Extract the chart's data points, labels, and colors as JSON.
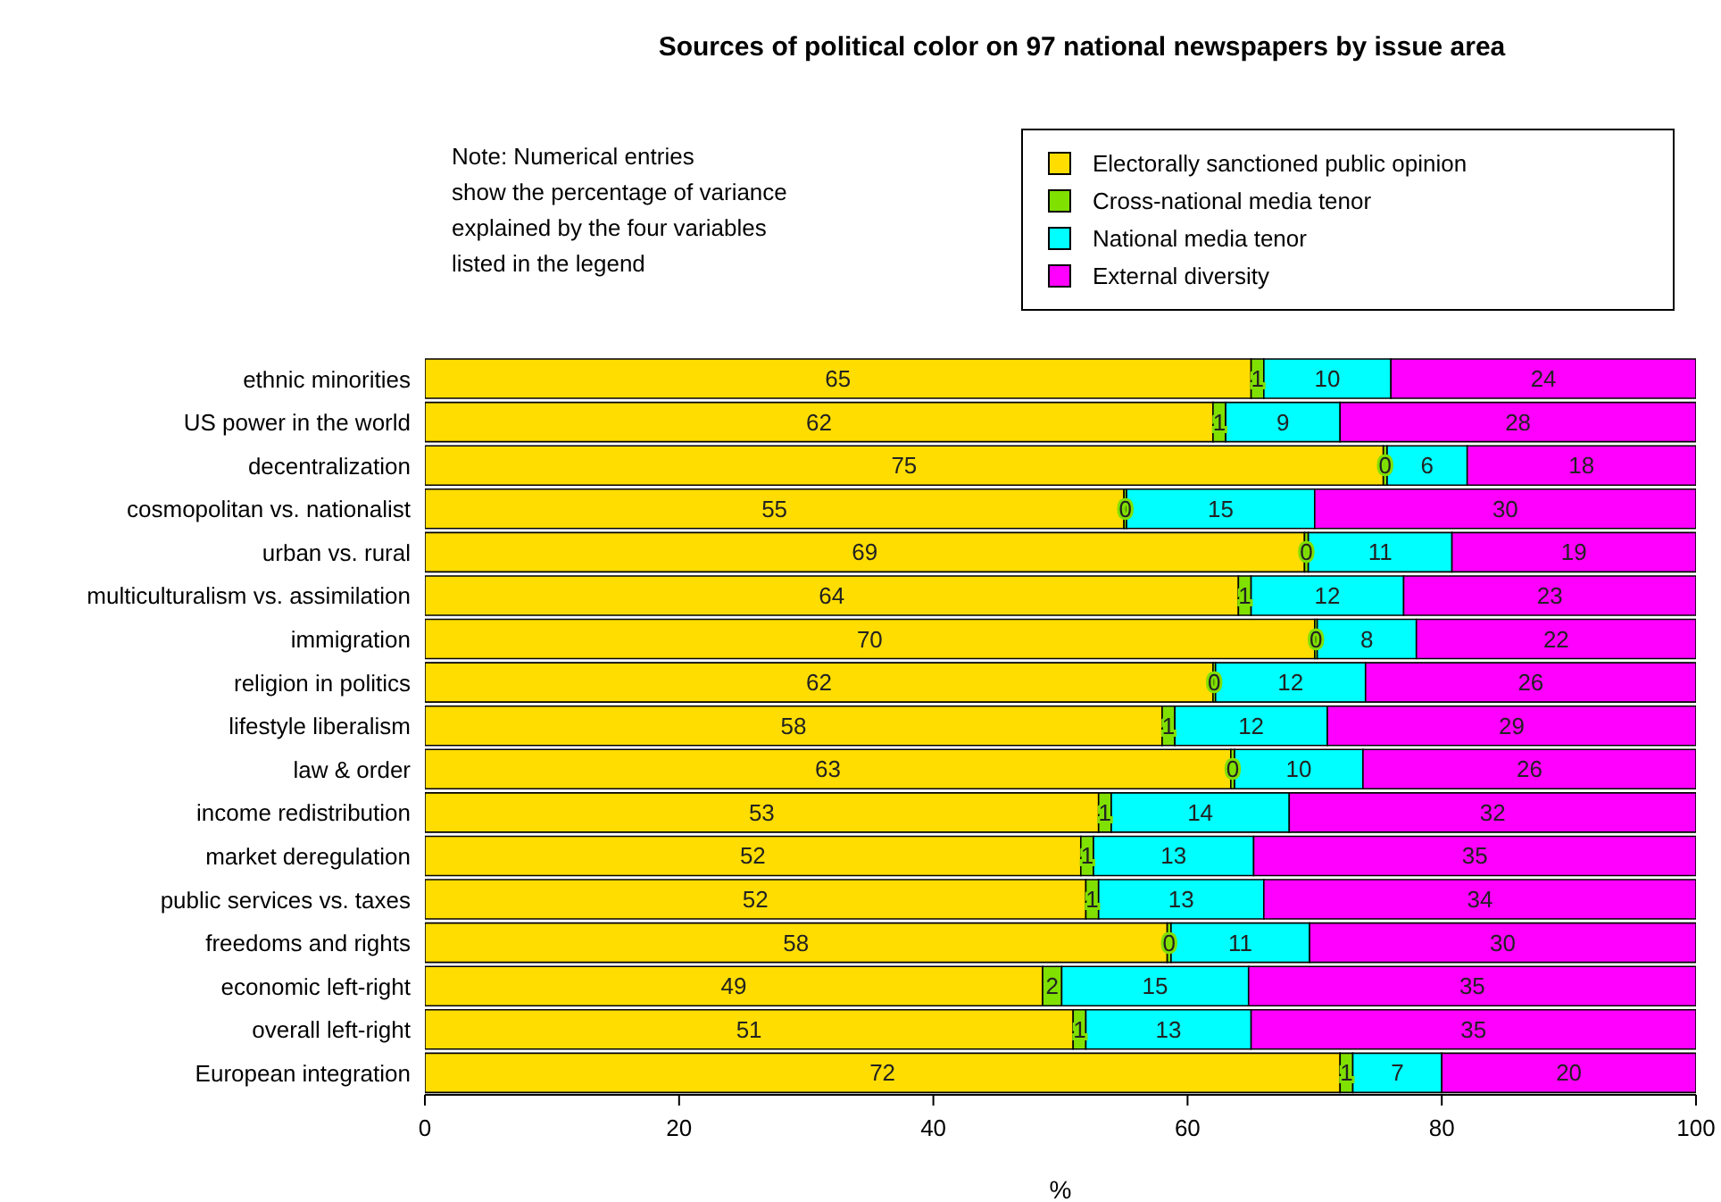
{
  "chart_data": {
    "type": "bar",
    "orientation": "horizontal",
    "stacked": true,
    "grid": false,
    "legend": "top right",
    "title": "Sources of political color on 97 national newspapers by issue area",
    "xlabel": "%",
    "annotations": [
      "Note: Numerical entries\nshow the percentage of variance\nexplained by the four variables\nlisted in the legend"
    ],
    "categories": [
      "ethnic minorities",
      "US power in the world",
      "decentralization",
      "cosmopolitan vs. nationalist",
      "urban vs. rural",
      "multiculturalism vs. assimilation",
      "immigration",
      "religion in politics",
      "lifestyle liberalism",
      "law & order",
      "income redistribution",
      "market deregulation",
      "public services vs. taxes",
      "freedoms and rights",
      "economic left-right",
      "overall left-right",
      "European integration"
    ],
    "xlim": [
      0,
      100
    ],
    "xticks": [
      0,
      20,
      40,
      60,
      80,
      100
    ],
    "series": [
      {
        "name": "Electorally sanctioned public opinion",
        "color": "#ffdd00",
        "values": [
          65,
          62,
          75.4,
          55,
          69.2,
          64,
          70,
          62,
          58,
          63.4,
          53,
          51.6,
          52,
          58.4,
          48.6,
          51,
          72
        ],
        "value_labels": [
          "65",
          "62",
          "75",
          "55",
          "69",
          "64",
          "70",
          "62",
          "58",
          "63",
          "53",
          "52",
          "52",
          "58",
          "49",
          "51",
          "72"
        ]
      },
      {
        "name": "Cross-national media tenor",
        "color": "#80e000",
        "values": [
          1,
          1,
          0.3,
          0.2,
          0.3,
          1,
          0.2,
          0.2,
          1,
          0.3,
          1,
          1,
          1,
          0.3,
          1.5,
          1,
          1
        ],
        "value_labels": [
          "1",
          "1",
          "0",
          "0",
          "0",
          "1",
          "0",
          "0",
          "1",
          "0",
          "1",
          "1",
          "1",
          "0",
          "2",
          "1",
          "1"
        ]
      },
      {
        "name": "National media tenor",
        "color": "#00ffff",
        "values": [
          10,
          9,
          6.3,
          14.8,
          11.3,
          12,
          7.8,
          11.8,
          12,
          10.1,
          14,
          12.6,
          13,
          10.9,
          14.7,
          13,
          7
        ],
        "value_labels": [
          "10",
          "9",
          "6",
          "15",
          "11",
          "12",
          "8",
          "12",
          "12",
          "10",
          "14",
          "13",
          "13",
          "11",
          "15",
          "13",
          "7"
        ]
      },
      {
        "name": "External diversity",
        "color": "#ff00ff",
        "values": [
          24,
          28,
          18,
          30,
          19.2,
          23,
          22,
          26,
          29,
          26.2,
          32,
          34.8,
          34,
          30.4,
          35.2,
          35,
          20
        ],
        "value_labels": [
          "24",
          "28",
          "18",
          "30",
          "19",
          "23",
          "22",
          "26",
          "29",
          "26",
          "32",
          "35",
          "34",
          "30",
          "35",
          "35",
          "20"
        ]
      }
    ]
  }
}
